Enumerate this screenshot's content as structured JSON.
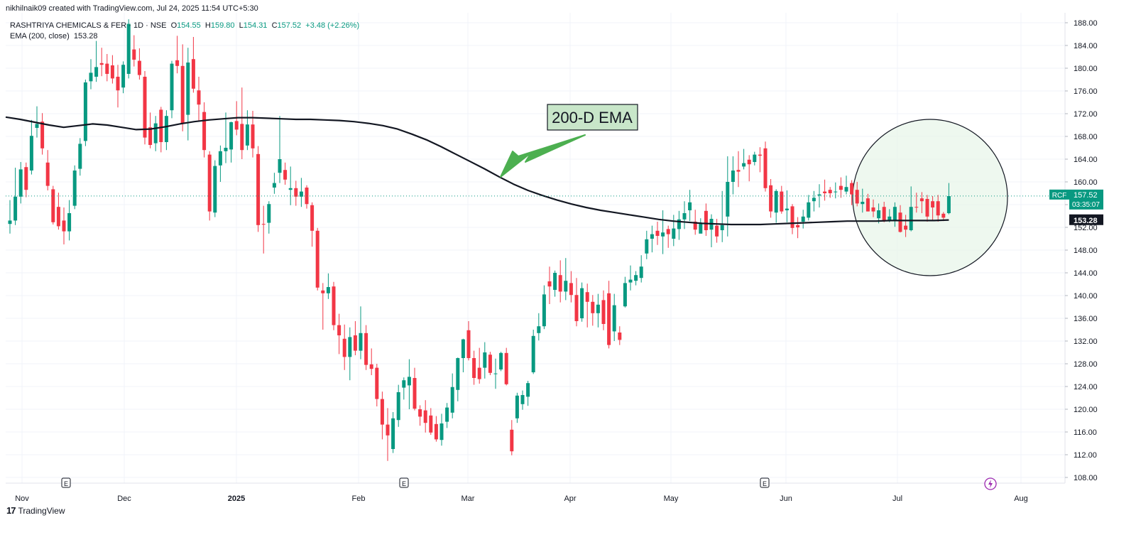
{
  "header": {
    "credit": "nikhilnaik09 created with TradingView.com, Jul 24, 2025 11:54 UTC+5:30",
    "symbol": "RASHTRIYA CHEMICALS & FER · 1D · NSE",
    "o_label": "O",
    "o_value": "154.55",
    "h_label": "H",
    "h_value": "159.80",
    "l_label": "L",
    "l_value": "154.31",
    "c_label": "C",
    "c_value": "157.52",
    "change": "+3.48 (+2.26%)",
    "ema_label": "EMA (200, close)",
    "ema_value": "153.28"
  },
  "footer": {
    "brand_logo": "17",
    "brand_name": "TradingView"
  },
  "annotations": {
    "ema_callout": "200-D EMA",
    "price_tag_symbol": "RCF",
    "price_tag_value": "157.52",
    "price_tag_timer": "03:35:07",
    "ema_tag_value": "153.28",
    "event_marker": "E"
  },
  "colors": {
    "up": "#089981",
    "down": "#f23645",
    "ema_line": "#131722",
    "arrow": "#4caf50",
    "circle_fill": "#e8f5e9",
    "grid": "#f0f3fa",
    "callout_fill": "#c8e6c9",
    "lightning": "#9c27b0"
  },
  "chart_data": {
    "type": "candlestick",
    "title": "RASHTRIYA CHEMICALS & FER · 1D · NSE",
    "ylim": [
      106,
      189
    ],
    "y_ticks": [
      108,
      112,
      116,
      120,
      124,
      128,
      132,
      136,
      140,
      144,
      148,
      152,
      156,
      160,
      164,
      168,
      172,
      176,
      180,
      184,
      188
    ],
    "x_ticks": [
      "Nov",
      "Dec",
      "2025",
      "Feb",
      "Mar",
      "Apr",
      "May",
      "Jun",
      "Jul",
      "Aug"
    ],
    "grid": true,
    "scale": "linear",
    "last_price": 157.52,
    "ema_value": 153.28,
    "ema_series": [
      171.4,
      171.0,
      170.5,
      170.0,
      169.6,
      169.9,
      170.2,
      170.0,
      169.6,
      169.2,
      169.3,
      169.7,
      170.2,
      170.6,
      170.9,
      171.1,
      171.3,
      171.3,
      171.2,
      171.1,
      171.0,
      171.0,
      170.9,
      170.8,
      170.6,
      170.3,
      169.9,
      169.3,
      168.4,
      167.4,
      166.2,
      164.9,
      163.6,
      162.3,
      160.9,
      159.6,
      158.5,
      157.6,
      156.8,
      156.1,
      155.5,
      155.0,
      154.6,
      154.2,
      153.8,
      153.4,
      153.1,
      152.9,
      152.7,
      152.6,
      152.5,
      152.5,
      152.5,
      152.6,
      152.7,
      152.8,
      152.9,
      153.0,
      153.1,
      153.1,
      153.1,
      153.2,
      153.2,
      153.2,
      153.2,
      153.3
    ],
    "candles": [
      {
        "o": 152.6,
        "h": 156.8,
        "l": 150.9,
        "c": 153.2
      },
      {
        "o": 153.2,
        "h": 162.5,
        "l": 152.4,
        "c": 157.4
      },
      {
        "o": 157.4,
        "h": 163.5,
        "l": 156.2,
        "c": 162.2
      },
      {
        "o": 162.6,
        "h": 163.4,
        "l": 157.3,
        "c": 158.6
      },
      {
        "o": 162.0,
        "h": 170.9,
        "l": 161.3,
        "c": 168.1
      },
      {
        "o": 169.5,
        "h": 173.3,
        "l": 167.8,
        "c": 170.2
      },
      {
        "o": 170.6,
        "h": 172.1,
        "l": 164.8,
        "c": 165.9
      },
      {
        "o": 163.4,
        "h": 165.6,
        "l": 158.5,
        "c": 159.3
      },
      {
        "o": 158.7,
        "h": 159.3,
        "l": 152.5,
        "c": 152.9
      },
      {
        "o": 155.6,
        "h": 158.1,
        "l": 151.6,
        "c": 152.2
      },
      {
        "o": 153.2,
        "h": 155.5,
        "l": 149.0,
        "c": 151.3
      },
      {
        "o": 151.3,
        "h": 156.8,
        "l": 149.7,
        "c": 154.5
      },
      {
        "o": 155.8,
        "h": 162.9,
        "l": 155.2,
        "c": 162.0
      },
      {
        "o": 162.3,
        "h": 167.7,
        "l": 161.1,
        "c": 166.7
      },
      {
        "o": 167.2,
        "h": 178.0,
        "l": 166.3,
        "c": 177.5
      },
      {
        "o": 177.7,
        "h": 181.6,
        "l": 176.3,
        "c": 179.2
      },
      {
        "o": 178.5,
        "h": 184.8,
        "l": 177.6,
        "c": 180.2
      },
      {
        "o": 180.9,
        "h": 183.6,
        "l": 178.6,
        "c": 180.6
      },
      {
        "o": 180.8,
        "h": 182.5,
        "l": 177.7,
        "c": 179.0
      },
      {
        "o": 180.5,
        "h": 182.3,
        "l": 177.3,
        "c": 178.2
      },
      {
        "o": 178.5,
        "h": 180.6,
        "l": 173.1,
        "c": 176.1
      },
      {
        "o": 176.6,
        "h": 181.2,
        "l": 175.6,
        "c": 180.6
      },
      {
        "o": 179.0,
        "h": 188.6,
        "l": 178.2,
        "c": 187.8
      },
      {
        "o": 183.3,
        "h": 185.8,
        "l": 180.3,
        "c": 181.5
      },
      {
        "o": 181.3,
        "h": 183.5,
        "l": 178.0,
        "c": 178.8
      },
      {
        "o": 178.5,
        "h": 179.5,
        "l": 166.6,
        "c": 167.8
      },
      {
        "o": 169.6,
        "h": 172.2,
        "l": 165.9,
        "c": 166.5
      },
      {
        "o": 166.8,
        "h": 171.6,
        "l": 165.4,
        "c": 170.3
      },
      {
        "o": 172.7,
        "h": 173.2,
        "l": 165.2,
        "c": 167.0
      },
      {
        "o": 167.0,
        "h": 172.6,
        "l": 165.6,
        "c": 171.6
      },
      {
        "o": 172.6,
        "h": 181.3,
        "l": 171.2,
        "c": 180.8
      },
      {
        "o": 181.4,
        "h": 185.7,
        "l": 179.1,
        "c": 180.4
      },
      {
        "o": 180.4,
        "h": 184.2,
        "l": 168.9,
        "c": 170.2
      },
      {
        "o": 171.8,
        "h": 183.6,
        "l": 167.3,
        "c": 181.0
      },
      {
        "o": 181.6,
        "h": 185.5,
        "l": 175.7,
        "c": 176.4
      },
      {
        "o": 176.1,
        "h": 178.5,
        "l": 170.6,
        "c": 173.6
      },
      {
        "o": 172.3,
        "h": 174.0,
        "l": 164.3,
        "c": 165.6
      },
      {
        "o": 164.8,
        "h": 165.4,
        "l": 153.2,
        "c": 154.8
      },
      {
        "o": 154.6,
        "h": 163.8,
        "l": 153.8,
        "c": 162.8
      },
      {
        "o": 162.9,
        "h": 166.4,
        "l": 160.0,
        "c": 165.4
      },
      {
        "o": 165.4,
        "h": 172.2,
        "l": 163.3,
        "c": 166.0
      },
      {
        "o": 165.7,
        "h": 170.6,
        "l": 163.4,
        "c": 170.5
      },
      {
        "o": 170.7,
        "h": 174.2,
        "l": 168.2,
        "c": 169.2
      },
      {
        "o": 170.2,
        "h": 176.6,
        "l": 164.0,
        "c": 165.6
      },
      {
        "o": 166.4,
        "h": 172.6,
        "l": 165.6,
        "c": 170.1
      },
      {
        "o": 170.1,
        "h": 172.5,
        "l": 164.3,
        "c": 165.9
      },
      {
        "o": 164.9,
        "h": 166.3,
        "l": 151.2,
        "c": 152.4
      },
      {
        "o": 152.6,
        "h": 155.8,
        "l": 147.4,
        "c": 152.5
      },
      {
        "o": 152.8,
        "h": 156.6,
        "l": 150.9,
        "c": 156.1
      },
      {
        "o": 159.0,
        "h": 161.6,
        "l": 157.9,
        "c": 159.8
      },
      {
        "o": 161.6,
        "h": 171.6,
        "l": 159.8,
        "c": 164.0
      },
      {
        "o": 162.1,
        "h": 163.4,
        "l": 159.5,
        "c": 160.4
      },
      {
        "o": 158.6,
        "h": 162.7,
        "l": 155.9,
        "c": 158.9
      },
      {
        "o": 158.9,
        "h": 160.2,
        "l": 155.8,
        "c": 157.4
      },
      {
        "o": 157.4,
        "h": 160.7,
        "l": 155.6,
        "c": 158.3
      },
      {
        "o": 159.0,
        "h": 159.4,
        "l": 155.3,
        "c": 156.1
      },
      {
        "o": 155.9,
        "h": 156.4,
        "l": 148.6,
        "c": 151.4
      },
      {
        "o": 151.4,
        "h": 151.9,
        "l": 140.9,
        "c": 141.4
      },
      {
        "o": 140.9,
        "h": 142.2,
        "l": 134.0,
        "c": 140.4
      },
      {
        "o": 140.4,
        "h": 143.9,
        "l": 139.4,
        "c": 141.5
      },
      {
        "o": 141.6,
        "h": 142.4,
        "l": 133.9,
        "c": 134.8
      },
      {
        "o": 134.8,
        "h": 136.8,
        "l": 129.7,
        "c": 133.0
      },
      {
        "o": 132.4,
        "h": 134.9,
        "l": 126.9,
        "c": 129.2
      },
      {
        "o": 129.2,
        "h": 134.4,
        "l": 125.1,
        "c": 132.7
      },
      {
        "o": 133.0,
        "h": 135.5,
        "l": 129.5,
        "c": 130.3
      },
      {
        "o": 130.3,
        "h": 138.1,
        "l": 128.8,
        "c": 133.4
      },
      {
        "o": 133.4,
        "h": 134.8,
        "l": 126.9,
        "c": 127.8
      },
      {
        "o": 127.9,
        "h": 130.7,
        "l": 126.0,
        "c": 127.1
      },
      {
        "o": 127.3,
        "h": 128.0,
        "l": 120.5,
        "c": 121.8
      },
      {
        "o": 121.8,
        "h": 123.1,
        "l": 114.7,
        "c": 117.3
      },
      {
        "o": 117.3,
        "h": 120.2,
        "l": 110.9,
        "c": 115.4
      },
      {
        "o": 113.0,
        "h": 119.5,
        "l": 112.3,
        "c": 118.4
      },
      {
        "o": 118.1,
        "h": 124.3,
        "l": 116.9,
        "c": 123.0
      },
      {
        "o": 123.8,
        "h": 125.6,
        "l": 121.7,
        "c": 125.1
      },
      {
        "o": 124.2,
        "h": 128.8,
        "l": 120.0,
        "c": 125.7
      },
      {
        "o": 125.5,
        "h": 127.3,
        "l": 119.8,
        "c": 120.1
      },
      {
        "o": 120.0,
        "h": 120.7,
        "l": 117.1,
        "c": 118.7
      },
      {
        "o": 119.8,
        "h": 121.6,
        "l": 115.9,
        "c": 117.6
      },
      {
        "o": 118.9,
        "h": 120.2,
        "l": 115.5,
        "c": 115.9
      },
      {
        "o": 117.4,
        "h": 118.8,
        "l": 114.3,
        "c": 114.7
      },
      {
        "o": 114.6,
        "h": 119.2,
        "l": 113.6,
        "c": 117.5
      },
      {
        "o": 117.8,
        "h": 121.1,
        "l": 116.7,
        "c": 120.3
      },
      {
        "o": 119.4,
        "h": 126.3,
        "l": 118.4,
        "c": 123.9
      },
      {
        "o": 123.4,
        "h": 129.1,
        "l": 121.4,
        "c": 129.0
      },
      {
        "o": 129.0,
        "h": 132.4,
        "l": 126.5,
        "c": 132.3
      },
      {
        "o": 133.9,
        "h": 135.5,
        "l": 128.6,
        "c": 129.0
      },
      {
        "o": 129.0,
        "h": 130.3,
        "l": 124.3,
        "c": 125.5
      },
      {
        "o": 127.3,
        "h": 130.8,
        "l": 124.5,
        "c": 125.3
      },
      {
        "o": 127.3,
        "h": 131.8,
        "l": 125.4,
        "c": 130.0
      },
      {
        "o": 129.6,
        "h": 130.1,
        "l": 126.0,
        "c": 126.4
      },
      {
        "o": 126.3,
        "h": 128.9,
        "l": 123.6,
        "c": 126.3
      },
      {
        "o": 127.0,
        "h": 130.1,
        "l": 126.7,
        "c": 129.9
      },
      {
        "o": 129.9,
        "h": 130.8,
        "l": 124.2,
        "c": 124.4
      },
      {
        "o": 116.4,
        "h": 118.1,
        "l": 111.9,
        "c": 112.6
      },
      {
        "o": 118.4,
        "h": 122.9,
        "l": 117.6,
        "c": 122.4
      },
      {
        "o": 120.9,
        "h": 123.3,
        "l": 119.9,
        "c": 122.5
      },
      {
        "o": 122.2,
        "h": 125.0,
        "l": 120.6,
        "c": 124.6
      },
      {
        "o": 126.5,
        "h": 134.0,
        "l": 126.2,
        "c": 132.9
      },
      {
        "o": 133.4,
        "h": 136.9,
        "l": 132.1,
        "c": 134.6
      },
      {
        "o": 134.6,
        "h": 141.8,
        "l": 134.1,
        "c": 140.2
      },
      {
        "o": 142.5,
        "h": 145.1,
        "l": 138.5,
        "c": 141.6
      },
      {
        "o": 141.0,
        "h": 144.4,
        "l": 139.8,
        "c": 144.0
      },
      {
        "o": 143.6,
        "h": 146.2,
        "l": 138.8,
        "c": 140.7
      },
      {
        "o": 140.7,
        "h": 146.6,
        "l": 139.2,
        "c": 142.6
      },
      {
        "o": 142.2,
        "h": 144.3,
        "l": 138.8,
        "c": 140.1
      },
      {
        "o": 140.1,
        "h": 143.1,
        "l": 134.6,
        "c": 135.5
      },
      {
        "o": 136.0,
        "h": 142.3,
        "l": 135.4,
        "c": 141.3
      },
      {
        "o": 140.6,
        "h": 142.1,
        "l": 134.4,
        "c": 138.9
      },
      {
        "o": 138.9,
        "h": 140.1,
        "l": 134.7,
        "c": 136.9
      },
      {
        "o": 136.9,
        "h": 140.3,
        "l": 134.4,
        "c": 138.4
      },
      {
        "o": 139.2,
        "h": 140.9,
        "l": 133.9,
        "c": 135.0
      },
      {
        "o": 140.4,
        "h": 142.6,
        "l": 130.7,
        "c": 131.3
      },
      {
        "o": 133.7,
        "h": 140.3,
        "l": 132.0,
        "c": 138.3
      },
      {
        "o": 133.5,
        "h": 134.6,
        "l": 131.3,
        "c": 132.2
      },
      {
        "o": 138.1,
        "h": 143.3,
        "l": 137.9,
        "c": 142.2
      },
      {
        "o": 142.3,
        "h": 145.3,
        "l": 140.9,
        "c": 142.8
      },
      {
        "o": 142.6,
        "h": 144.3,
        "l": 141.8,
        "c": 143.6
      },
      {
        "o": 143.1,
        "h": 147.1,
        "l": 142.3,
        "c": 145.1
      },
      {
        "o": 147.4,
        "h": 151.4,
        "l": 146.4,
        "c": 149.9
      },
      {
        "o": 150.0,
        "h": 152.3,
        "l": 147.6,
        "c": 150.8
      },
      {
        "o": 151.4,
        "h": 153.0,
        "l": 148.9,
        "c": 150.5
      },
      {
        "o": 150.4,
        "h": 155.0,
        "l": 147.3,
        "c": 151.1
      },
      {
        "o": 151.7,
        "h": 152.3,
        "l": 148.4,
        "c": 150.8
      },
      {
        "o": 150.0,
        "h": 154.2,
        "l": 148.7,
        "c": 151.8
      },
      {
        "o": 151.7,
        "h": 154.9,
        "l": 149.8,
        "c": 153.4
      },
      {
        "o": 153.4,
        "h": 156.6,
        "l": 151.7,
        "c": 154.5
      },
      {
        "o": 155.0,
        "h": 158.6,
        "l": 153.1,
        "c": 156.4
      },
      {
        "o": 153.0,
        "h": 155.1,
        "l": 150.7,
        "c": 151.6
      },
      {
        "o": 150.9,
        "h": 153.6,
        "l": 151.0,
        "c": 152.6
      },
      {
        "o": 154.9,
        "h": 156.2,
        "l": 150.5,
        "c": 151.5
      },
      {
        "o": 151.6,
        "h": 154.3,
        "l": 148.5,
        "c": 153.5
      },
      {
        "o": 152.3,
        "h": 153.5,
        "l": 149.3,
        "c": 150.4
      },
      {
        "o": 151.5,
        "h": 158.4,
        "l": 149.4,
        "c": 152.4
      },
      {
        "o": 153.9,
        "h": 164.5,
        "l": 150.4,
        "c": 160.0
      },
      {
        "o": 160.0,
        "h": 164.5,
        "l": 157.8,
        "c": 162.0
      },
      {
        "o": 162.1,
        "h": 165.4,
        "l": 159.1,
        "c": 161.8
      },
      {
        "o": 162.7,
        "h": 165.8,
        "l": 162.2,
        "c": 163.3
      },
      {
        "o": 163.9,
        "h": 164.7,
        "l": 160.1,
        "c": 163.1
      },
      {
        "o": 163.5,
        "h": 165.3,
        "l": 162.9,
        "c": 164.8
      },
      {
        "o": 164.8,
        "h": 166.1,
        "l": 161.7,
        "c": 164.6
      },
      {
        "o": 165.9,
        "h": 167.1,
        "l": 158.3,
        "c": 158.9
      },
      {
        "o": 159.4,
        "h": 160.5,
        "l": 153.7,
        "c": 154.8
      },
      {
        "o": 154.6,
        "h": 158.7,
        "l": 152.8,
        "c": 158.4
      },
      {
        "o": 158.3,
        "h": 159.3,
        "l": 154.4,
        "c": 154.8
      },
      {
        "o": 155.0,
        "h": 158.5,
        "l": 152.9,
        "c": 155.3
      },
      {
        "o": 155.7,
        "h": 156.1,
        "l": 150.8,
        "c": 151.9
      },
      {
        "o": 152.4,
        "h": 153.8,
        "l": 150.1,
        "c": 152.0
      },
      {
        "o": 153.0,
        "h": 155.1,
        "l": 151.8,
        "c": 153.9
      },
      {
        "o": 153.7,
        "h": 157.7,
        "l": 153.2,
        "c": 156.4
      },
      {
        "o": 156.6,
        "h": 158.4,
        "l": 154.8,
        "c": 157.2
      },
      {
        "o": 157.6,
        "h": 159.6,
        "l": 155.5,
        "c": 157.8
      },
      {
        "o": 158.3,
        "h": 160.4,
        "l": 156.7,
        "c": 158.0
      },
      {
        "o": 158.6,
        "h": 159.1,
        "l": 157.2,
        "c": 158.0
      },
      {
        "o": 158.2,
        "h": 159.9,
        "l": 157.1,
        "c": 158.3
      },
      {
        "o": 159.3,
        "h": 160.8,
        "l": 157.2,
        "c": 158.6
      },
      {
        "o": 158.3,
        "h": 161.1,
        "l": 157.8,
        "c": 159.1
      },
      {
        "o": 159.8,
        "h": 160.3,
        "l": 155.9,
        "c": 157.8
      },
      {
        "o": 158.6,
        "h": 160.0,
        "l": 155.7,
        "c": 156.2
      },
      {
        "o": 156.1,
        "h": 158.8,
        "l": 154.6,
        "c": 156.5
      },
      {
        "o": 157.1,
        "h": 157.9,
        "l": 154.8,
        "c": 154.8
      },
      {
        "o": 155.5,
        "h": 156.9,
        "l": 153.8,
        "c": 154.8
      },
      {
        "o": 153.6,
        "h": 156.2,
        "l": 152.7,
        "c": 155.0
      },
      {
        "o": 155.6,
        "h": 156.5,
        "l": 152.9,
        "c": 153.1
      },
      {
        "o": 153.2,
        "h": 155.2,
        "l": 152.9,
        "c": 153.9
      },
      {
        "o": 153.2,
        "h": 156.4,
        "l": 152.1,
        "c": 155.6
      },
      {
        "o": 154.6,
        "h": 155.9,
        "l": 151.1,
        "c": 151.2
      },
      {
        "o": 152.3,
        "h": 154.2,
        "l": 150.3,
        "c": 151.6
      },
      {
        "o": 151.5,
        "h": 159.2,
        "l": 151.3,
        "c": 155.6
      },
      {
        "o": 155.6,
        "h": 158.1,
        "l": 154.6,
        "c": 155.5
      },
      {
        "o": 157.1,
        "h": 158.2,
        "l": 154.5,
        "c": 156.6
      },
      {
        "o": 157.0,
        "h": 157.7,
        "l": 153.0,
        "c": 153.9
      },
      {
        "o": 156.6,
        "h": 157.5,
        "l": 153.2,
        "c": 155.5
      },
      {
        "o": 156.6,
        "h": 157.7,
        "l": 153.0,
        "c": 154.1
      },
      {
        "o": 154.4,
        "h": 154.7,
        "l": 153.1,
        "c": 153.7
      },
      {
        "o": 154.5,
        "h": 159.8,
        "l": 154.3,
        "c": 157.5
      }
    ]
  }
}
